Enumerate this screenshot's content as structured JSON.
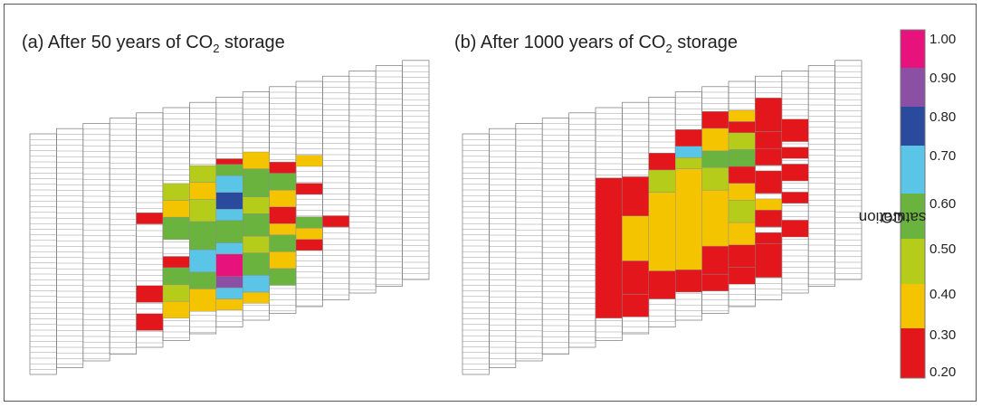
{
  "panels": [
    {
      "id": "a",
      "title_prefix": "(a) After 50 years of CO",
      "title_sub": "2",
      "title_suffix": " storage"
    },
    {
      "id": "b",
      "title_prefix": "(b) After 1000 years of CO",
      "title_sub": "2",
      "title_suffix": " storage"
    }
  ],
  "colorbar": {
    "label_prefix": "CO",
    "label_sub": "2",
    "label_suffix": " saturation",
    "ticks": [
      "1.00",
      "0.90",
      "0.80",
      "0.70",
      "0.60",
      "0.50",
      "0.40",
      "0.30",
      "0.20"
    ],
    "colors": [
      "#e8127c",
      "#8b4fa3",
      "#2a4a9e",
      "#5bc5e8",
      "#6bb33f",
      "#b5cc1a",
      "#f5c400",
      "#e3161b"
    ]
  },
  "colors": {
    "magenta": "#e8127c",
    "purple": "#8b4fa3",
    "blue": "#2a4a9e",
    "cyan": "#5bc5e8",
    "green": "#6bb33f",
    "lime": "#b5cc1a",
    "yellow": "#f5c400",
    "red": "#e3161b"
  }
}
